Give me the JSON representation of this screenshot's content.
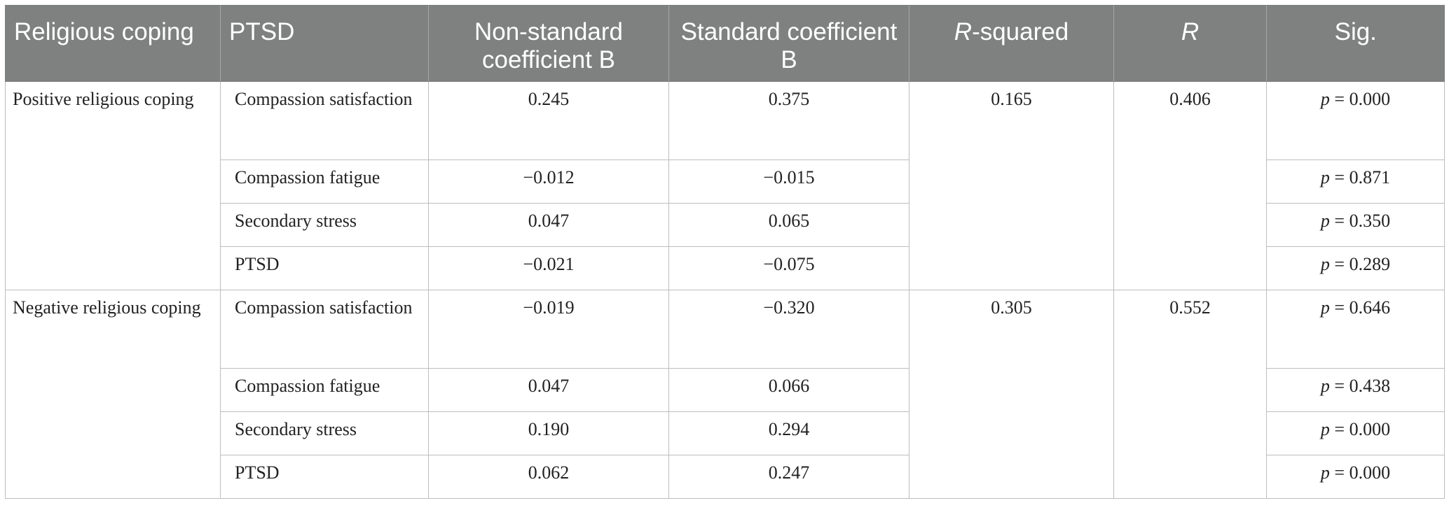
{
  "headers": {
    "religious_coping": "Religious coping",
    "ptsd": "PTSD",
    "non_standard": "Non-standard coefficient B",
    "standard": "Standard coefficient B",
    "r_squared_italic": "R",
    "r_squared_rest": "-squared",
    "r": "R",
    "sig": "Sig."
  },
  "p_prefix": "p",
  "groups": [
    {
      "label": "Positive religious coping",
      "r_squared": "0.165",
      "r": "0.406",
      "rows": [
        {
          "ptsd": "Compassion satisfaction",
          "non_standard": "0.245",
          "standard": "0.375",
          "sig": "= 0.000"
        },
        {
          "ptsd": "Compassion fatigue",
          "non_standard": "−0.012",
          "standard": "−0.015",
          "sig": "= 0.871"
        },
        {
          "ptsd": "Secondary stress",
          "non_standard": "0.047",
          "standard": "0.065",
          "sig": "= 0.350"
        },
        {
          "ptsd": "PTSD",
          "non_standard": "−0.021",
          "standard": "−0.075",
          "sig": "= 0.289"
        }
      ]
    },
    {
      "label": "Negative religious coping",
      "r_squared": "0.305",
      "r": "0.552",
      "rows": [
        {
          "ptsd": "Compassion satisfaction",
          "non_standard": "−0.019",
          "standard": "−0.320",
          "sig": "= 0.646"
        },
        {
          "ptsd": "Compassion fatigue",
          "non_standard": "0.047",
          "standard": "0.066",
          "sig": "= 0.438"
        },
        {
          "ptsd": "Secondary stress",
          "non_standard": "0.190",
          "standard": "0.294",
          "sig": "= 0.000"
        },
        {
          "ptsd": "PTSD",
          "non_standard": "0.062",
          "standard": "0.247",
          "sig": "= 0.000"
        }
      ]
    }
  ]
}
